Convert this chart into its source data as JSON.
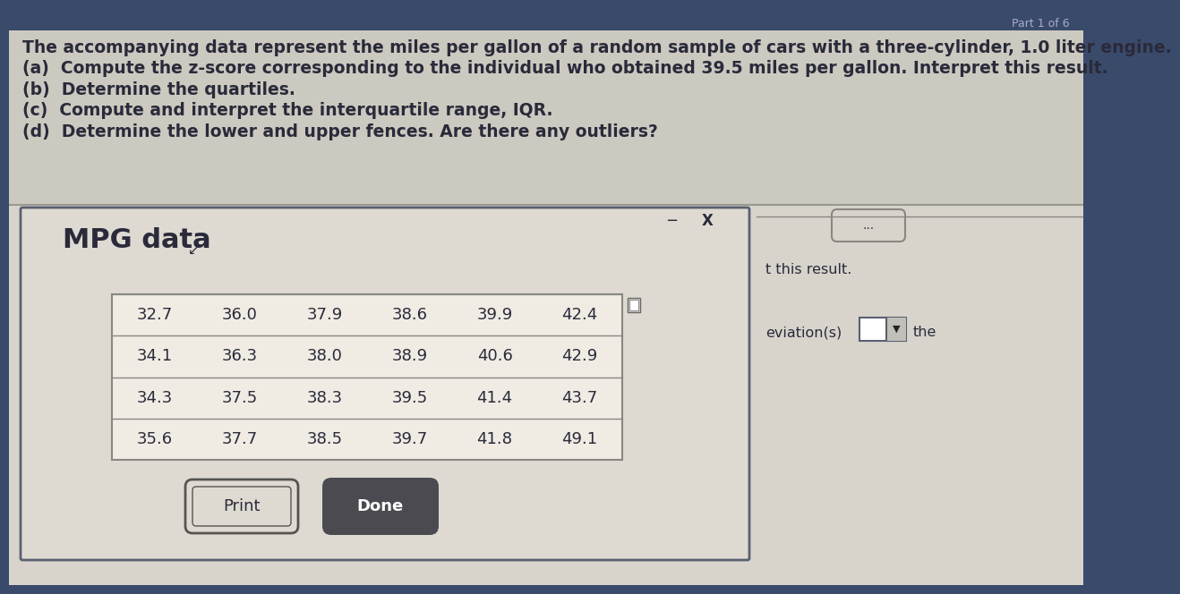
{
  "title_text": "The accompanying data represent the miles per gallon of a random sample of cars with a three-cylinder, 1.0 liter engine.",
  "questions": [
    "(a)  Compute the z-score corresponding to the individual who obtained 39.5 miles per gallon. Interpret this result.",
    "(b)  Determine the quartiles.",
    "(c)  Compute and interpret the interquartile range, IQR.",
    "(d)  Determine the lower and upper fences. Are there any outliers?"
  ],
  "dialog_title": "MPG data",
  "table_data": [
    [
      "32.7",
      "36.0",
      "37.9",
      "38.6",
      "39.9",
      "42.4"
    ],
    [
      "34.1",
      "36.3",
      "38.0",
      "38.9",
      "40.6",
      "42.9"
    ],
    [
      "34.3",
      "37.5",
      "38.3",
      "39.5",
      "41.4",
      "43.7"
    ],
    [
      "35.6",
      "37.7",
      "38.5",
      "39.7",
      "41.8",
      "49.1"
    ]
  ],
  "btn_print": "Print",
  "btn_done": "Done",
  "right_text1": "t this result.",
  "right_text2": "eviation(s)",
  "right_text3": "the",
  "top_right": "Part 1 of 6",
  "bg_outer": "#3a4a6b",
  "bg_main": "#d8d4cc",
  "dialog_bg": "#dedad2",
  "table_bg": "#f0ece4",
  "text_color": "#222222",
  "text_color_dark": "#2a2a3a",
  "font_size_title": 13.5,
  "font_size_table": 13,
  "font_size_dialog_title": 22
}
